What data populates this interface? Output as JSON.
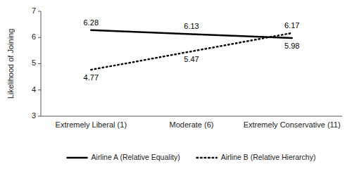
{
  "chart_data": {
    "type": "line",
    "categories": [
      "Extremely Liberal (1)",
      "Moderate (6)",
      "Extremely Conservative (11)"
    ],
    "series": [
      {
        "name": "Airline A (Relative Equality)",
        "color": "#000000",
        "line_style": "solid",
        "values": [
          6.28,
          6.13,
          5.98
        ]
      },
      {
        "name": "Airline B (Relative Hierarchy)",
        "color": "#000000",
        "line_style": "dotted",
        "values": [
          4.77,
          5.47,
          6.17
        ]
      }
    ],
    "y_label": "Likelihood of Joining",
    "ylim": [
      3,
      7
    ],
    "yticks": [
      3,
      4,
      5,
      6,
      7
    ],
    "data_labels": true,
    "legend": "bottom",
    "grid": false
  }
}
